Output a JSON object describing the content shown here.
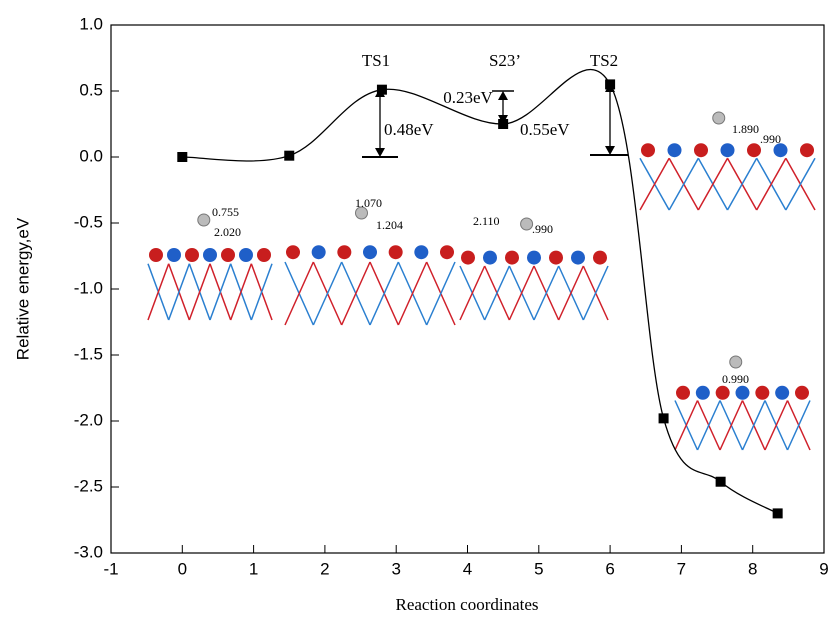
{
  "chart_data": {
    "type": "line",
    "x_label": "Reaction coordinates",
    "y_label": "Relative energy,eV",
    "x": [
      0,
      1.5,
      2.8,
      4.5,
      6,
      6.75,
      7.55,
      8.35
    ],
    "series": [
      {
        "color": "#000000",
        "values": [
          0,
          0.01,
          0.51,
          0.25,
          0.55,
          -1.98,
          -2.46,
          -2.7
        ]
      }
    ],
    "xlim": [
      -1,
      9
    ],
    "xticks": [
      -1,
      0,
      1,
      2,
      3,
      4,
      5,
      6,
      7,
      8,
      9
    ],
    "ylim": [
      -3,
      1
    ],
    "yticks": [
      {
        "value": -3,
        "label": "-3.0"
      },
      -2.5,
      {
        "value": -2,
        "label": "-2.0"
      },
      -1.5,
      {
        "value": -1,
        "label": "-1.0"
      },
      -0.5,
      {
        "value": 0,
        "label": "0.0"
      },
      0.5,
      {
        "value": 1,
        "label": "1.0"
      }
    ],
    "annotations": [
      "TS1",
      "S23’",
      "TS2",
      "0.23eV",
      "0.48eV",
      "0.55eV"
    ],
    "inset_labels": [
      "0.755",
      "2.020",
      "1.070",
      "1.204",
      "2.110",
      ".990",
      "1.890",
      ".990",
      "0.990"
    ]
  }
}
